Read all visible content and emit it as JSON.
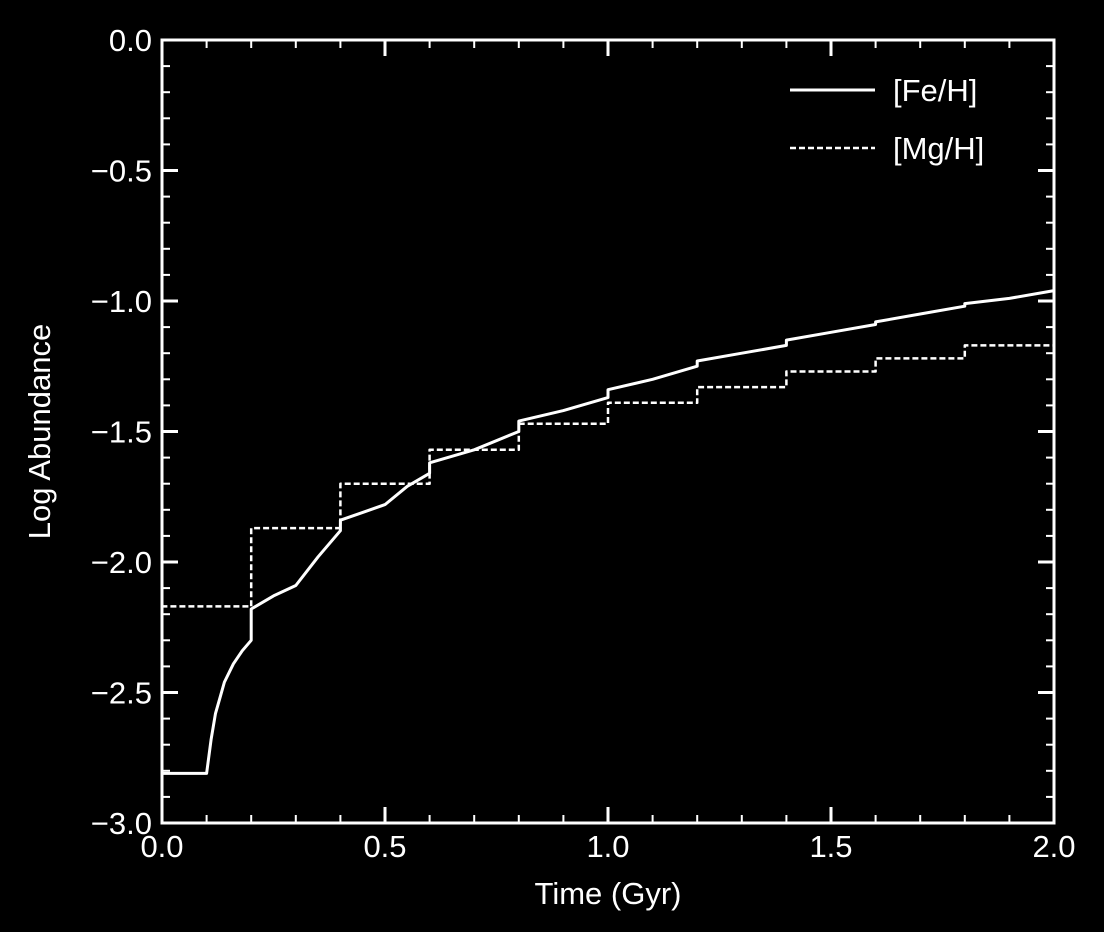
{
  "chart_data": {
    "type": "line",
    "title": "",
    "xlabel": "Time (Gyr)",
    "ylabel": "Log Abundance",
    "xlim": [
      0.0,
      2.0
    ],
    "ylim": [
      -3.0,
      0.0
    ],
    "xticks": [
      0.0,
      0.5,
      1.0,
      1.5,
      2.0
    ],
    "xtick_labels": [
      "0.0",
      "0.5",
      "1.0",
      "1.5",
      "2.0"
    ],
    "yticks": [
      0.0,
      -0.5,
      -1.0,
      -1.5,
      -2.0,
      -2.5,
      -3.0
    ],
    "ytick_labels": [
      "0.0",
      "−0.5",
      "−1.0",
      "−1.5",
      "−2.0",
      "−2.5",
      "−3.0"
    ],
    "grid": false,
    "legend_position": "top-right",
    "background": "#000000",
    "foreground": "#ffffff",
    "series": [
      {
        "name": "[Fe/H]",
        "style": "solid",
        "x": [
          0.0,
          0.02,
          0.1,
          0.11,
          0.12,
          0.13,
          0.14,
          0.16,
          0.18,
          0.2,
          0.2,
          0.25,
          0.3,
          0.35,
          0.4,
          0.4,
          0.45,
          0.5,
          0.55,
          0.6,
          0.6,
          0.7,
          0.8,
          0.8,
          0.9,
          1.0,
          1.0,
          1.1,
          1.2,
          1.2,
          1.3,
          1.4,
          1.4,
          1.5,
          1.6,
          1.6,
          1.7,
          1.8,
          1.8,
          1.9,
          2.0
        ],
        "y": [
          -2.81,
          -2.81,
          -2.81,
          -2.68,
          -2.58,
          -2.52,
          -2.46,
          -2.39,
          -2.34,
          -2.3,
          -2.18,
          -2.13,
          -2.09,
          -1.98,
          -1.88,
          -1.84,
          -1.81,
          -1.78,
          -1.71,
          -1.66,
          -1.62,
          -1.57,
          -1.5,
          -1.46,
          -1.42,
          -1.37,
          -1.34,
          -1.3,
          -1.25,
          -1.23,
          -1.2,
          -1.17,
          -1.15,
          -1.12,
          -1.09,
          -1.08,
          -1.05,
          -1.02,
          -1.01,
          -0.99,
          -0.96
        ]
      },
      {
        "name": "[Mg/H]",
        "style": "dashed",
        "x": [
          0.0,
          0.0,
          0.2,
          0.2,
          0.4,
          0.4,
          0.6,
          0.6,
          0.8,
          0.8,
          1.0,
          1.0,
          1.2,
          1.2,
          1.4,
          1.4,
          1.6,
          1.6,
          1.8,
          1.8,
          2.0
        ],
        "y": [
          -3.0,
          -2.17,
          -2.17,
          -1.87,
          -1.87,
          -1.7,
          -1.7,
          -1.57,
          -1.57,
          -1.47,
          -1.47,
          -1.39,
          -1.39,
          -1.33,
          -1.33,
          -1.27,
          -1.27,
          -1.22,
          -1.22,
          -1.17,
          -1.17
        ]
      }
    ]
  }
}
